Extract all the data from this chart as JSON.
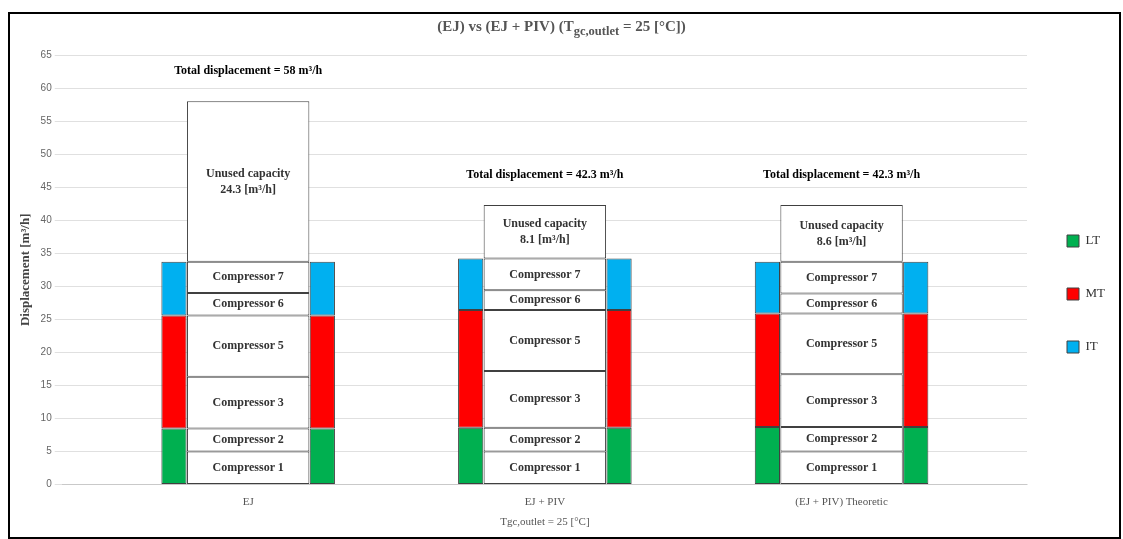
{
  "chart_data": {
    "type": "bar",
    "title": "(EJ) vs (EJ + PIV) (T$_{gc,outlet}$ = 25 [°C])",
    "xlabel": "Tgc,outlet = 25 [°C]",
    "ylabel": "Displacement [m³/h]",
    "categories": [
      null,
      null,
      "EJ",
      null,
      null,
      null,
      "EJ + PIV",
      null,
      null,
      null,
      "(EJ + PIV) Theoretic",
      null,
      null
    ],
    "stacked": true,
    "series": [
      {
        "name": "LT",
        "color": "#00b050",
        "values": [
          null,
          8.5,
          null,
          8.5,
          null,
          8.6,
          null,
          8.6,
          null,
          8.7,
          null,
          8.7,
          null
        ]
      },
      {
        "name": "MT",
        "color": "#ff0000",
        "values": [
          null,
          17.1,
          null,
          17.1,
          null,
          17.8,
          null,
          17.8,
          null,
          17.2,
          null,
          17.2,
          null
        ]
      },
      {
        "name": "IT",
        "color": "#00b0f0",
        "values": [
          null,
          8.1,
          null,
          8.1,
          null,
          7.8,
          null,
          7.8,
          null,
          7.8,
          null,
          7.8,
          null
        ]
      },
      {
        "name": "Compressor 1",
        "color": "#ffffff",
        "values": [
          null,
          null,
          5,
          null,
          null,
          null,
          5,
          null,
          null,
          null,
          5,
          null,
          null
        ]
      },
      {
        "name": "Compressor 2",
        "color": "#ffffff",
        "values": [
          null,
          null,
          3.5,
          null,
          null,
          null,
          3.6,
          null,
          null,
          null,
          3.7,
          null,
          null
        ]
      },
      {
        "name": "Compressor 3",
        "color": "#ffffff",
        "values": [
          null,
          null,
          7.8,
          null,
          null,
          null,
          8.6,
          null,
          null,
          null,
          8.0,
          null,
          null
        ]
      },
      {
        "name": "Compressor 5",
        "color": "#ffffff",
        "values": [
          null,
          null,
          9.3,
          null,
          null,
          null,
          9.2,
          null,
          null,
          null,
          9.2,
          null,
          null
        ]
      },
      {
        "name": "Compressor 6",
        "color": "#ffffff",
        "values": [
          null,
          null,
          3.4,
          null,
          null,
          null,
          3.0,
          null,
          null,
          null,
          3.0,
          null,
          null
        ]
      },
      {
        "name": "Compressor 7",
        "color": "#ffffff",
        "values": [
          null,
          null,
          4.7,
          null,
          null,
          null,
          4.8,
          null,
          null,
          null,
          4.8,
          null,
          null
        ]
      },
      {
        "name": "Unused capacity",
        "color": "#ffffff",
        "values": [
          null,
          null,
          24.3,
          null,
          null,
          null,
          8.1,
          null,
          null,
          null,
          8.6,
          null,
          null
        ],
        "value_labels": [
          null,
          null,
          "24.3 [m³/h]",
          null,
          null,
          null,
          "8.1 [m³/h]",
          null,
          null,
          null,
          "8.6 [m³/h]",
          null,
          null
        ]
      }
    ],
    "totals": [
      null,
      null,
      "Total displacement = 58 m³/h",
      null,
      null,
      null,
      "Total displacement = 42.3 m³/h",
      null,
      null,
      null,
      "Total displacement = 42.3 m³/h",
      null,
      null
    ],
    "ylim": [
      0,
      65
    ],
    "yticks": [
      0,
      5,
      10,
      15,
      20,
      25,
      30,
      35,
      40,
      45,
      50,
      55,
      60,
      65
    ],
    "grid": "y",
    "legend": "right"
  }
}
